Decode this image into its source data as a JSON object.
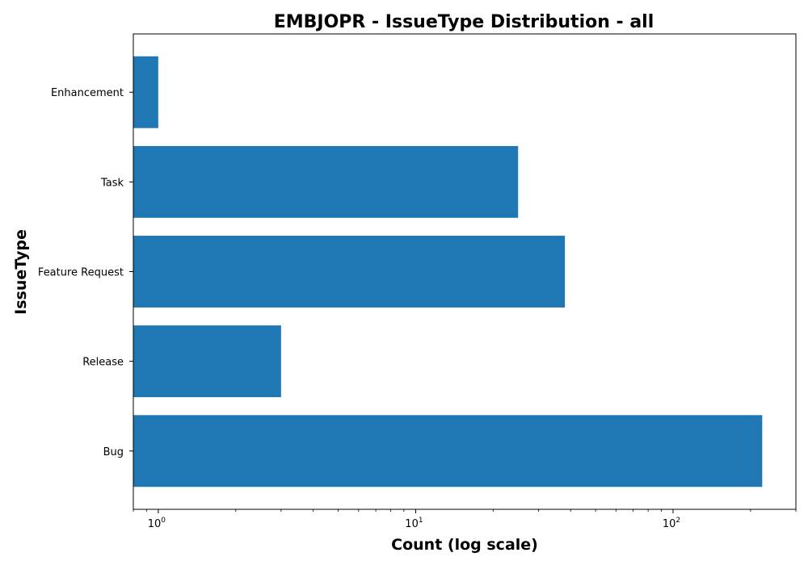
{
  "chart_data": {
    "type": "bar",
    "orientation": "horizontal",
    "title": "EMBJOPR - IssueType Distribution - all",
    "xlabel": "Count (log scale)",
    "ylabel": "IssueType",
    "x_scale": "log",
    "xlim": [
      0.8,
      300
    ],
    "x_ticks": [
      {
        "value": 1,
        "base": "10",
        "exp": "0"
      },
      {
        "value": 10,
        "base": "10",
        "exp": "1"
      },
      {
        "value": 100,
        "base": "10",
        "exp": "2"
      }
    ],
    "categories": [
      "Bug",
      "Release",
      "Feature Request",
      "Task",
      "Enhancement"
    ],
    "values": [
      222,
      3,
      38,
      25,
      1
    ],
    "bar_color": "#1f77b4",
    "grid": false,
    "legend": "none"
  }
}
